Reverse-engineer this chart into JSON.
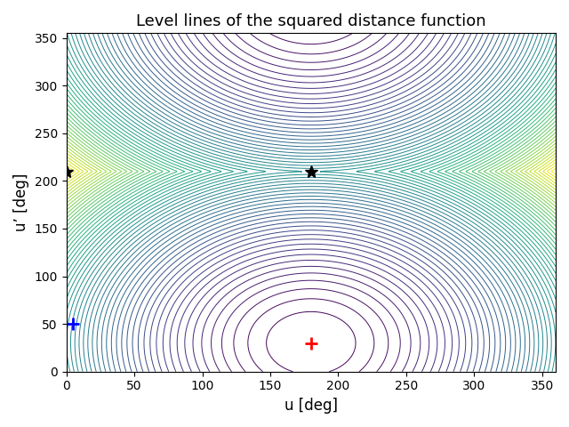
{
  "title": "Level lines of the squared distance function",
  "xlabel": "u [deg]",
  "ylabel": "u’ [deg]",
  "xlim": [
    0,
    360
  ],
  "ylim": [
    0,
    355
  ],
  "xticks": [
    0,
    50,
    100,
    150,
    200,
    250,
    300,
    350
  ],
  "yticks": [
    0,
    50,
    100,
    150,
    200,
    250,
    300,
    350
  ],
  "minimum_x": 180,
  "minimum_y": 30,
  "star1_x": 0,
  "star1_y": 210,
  "star2_x": 180,
  "star2_y": 210,
  "blue_plus_x": 5,
  "blue_plus_y": 50,
  "n_contours": 60,
  "cmap": "viridis",
  "figsize": [
    6.4,
    4.8
  ],
  "dpi": 100
}
